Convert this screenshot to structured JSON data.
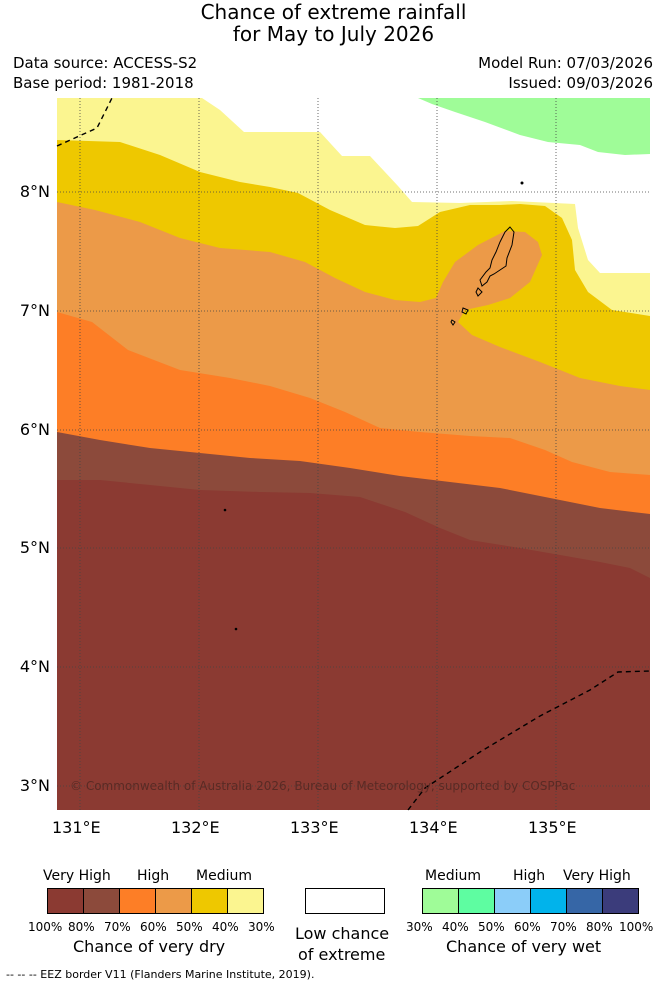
{
  "title": {
    "line1": "Chance of extreme rainfall",
    "line2": "for May to July 2026"
  },
  "meta": {
    "data_source": "Data source: ACCESS-S2",
    "base_period": "Base period: 1981-2018",
    "model_run": "Model Run: 07/03/2026",
    "issued": "Issued: 09/03/2026"
  },
  "map": {
    "lat_labels": [
      "8°N",
      "7°N",
      "6°N",
      "5°N",
      "4°N",
      "3°N"
    ],
    "lon_labels": [
      "131°E",
      "132°E",
      "133°E",
      "134°E",
      "135°E"
    ],
    "copyright": "© Commonwealth of Australia 2026, Bureau of Meteorology, supported by COSPPac",
    "colors": {
      "very_dry_80_100": "#8b3a32",
      "very_dry_70_80": "#8c4a3b",
      "very_dry_60_70": "#fd7e26",
      "very_dry_50_60": "#ec9a48",
      "very_dry_40_50": "#eec800",
      "very_dry_30_40": "#fbf590",
      "low_chance": "#ffffff",
      "very_wet_30_40": "#9ffc98"
    }
  },
  "legend_dry": {
    "very_high": "Very High",
    "high": "High",
    "medium": "Medium",
    "colors": [
      "#8b3a32",
      "#8c4a3b",
      "#fd7e26",
      "#ec9a48",
      "#eec800",
      "#fbf590"
    ],
    "ticks": [
      "100%",
      "80%",
      "70%",
      "60%",
      "50%",
      "40%",
      "30%"
    ],
    "caption": "Chance of very dry"
  },
  "legend_low": {
    "color": "#ffffff",
    "caption_line1": "Low chance",
    "caption_line2": "of extreme"
  },
  "legend_wet": {
    "medium": "Medium",
    "high": "High",
    "very_high": "Very High",
    "colors": [
      "#9ffc98",
      "#5efda1",
      "#8bcdf9",
      "#01b3eb",
      "#3666a6",
      "#3b3c7b"
    ],
    "ticks": [
      "30%",
      "40%",
      "50%",
      "60%",
      "70%",
      "80%",
      "100%"
    ],
    "caption": "Chance of very wet"
  },
  "footnote": "--  --  -- EEZ border V11 (Flanders Marine Institute, 2019)."
}
